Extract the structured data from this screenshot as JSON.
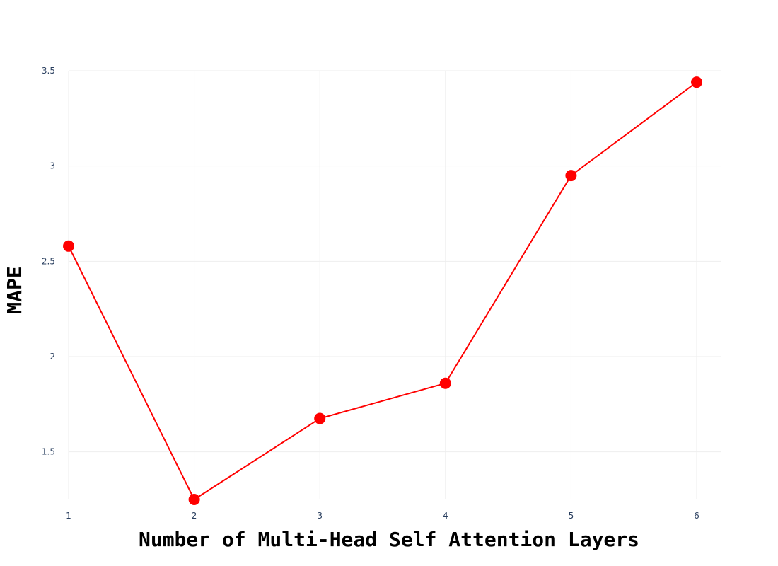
{
  "chart_data": {
    "type": "line",
    "title": "",
    "xlabel": "Number of Multi-Head Self Attention Layers",
    "ylabel": "MAPE",
    "x": [
      1,
      2,
      3,
      4,
      5,
      6
    ],
    "xlim": [
      1,
      6
    ],
    "xticks": [
      "1",
      "2",
      "3",
      "4",
      "5",
      "6"
    ],
    "ylim": [
      1.25,
      3.5
    ],
    "yticks": [
      "1.5",
      "2",
      "2.5",
      "3",
      "3.5"
    ],
    "ytick_values": [
      1.5,
      2,
      2.5,
      3,
      3.5
    ],
    "grid": true,
    "legend": "none",
    "series": [
      {
        "values": [
          2.58,
          1.25,
          1.675,
          1.86,
          2.95,
          3.44
        ],
        "color": "#ff0000",
        "mode": "lines+markers"
      }
    ]
  }
}
